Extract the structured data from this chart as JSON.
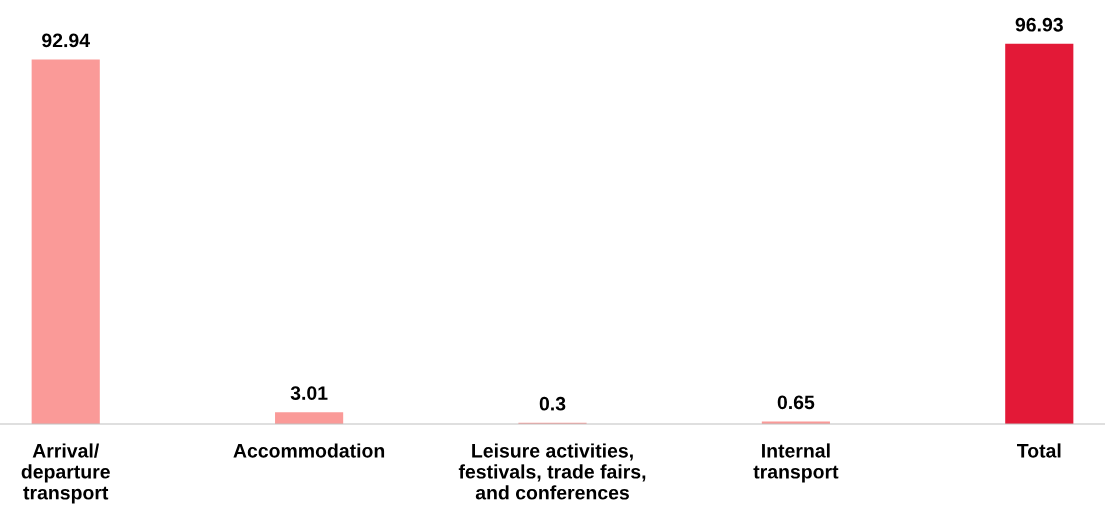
{
  "chart_data": {
    "type": "bar",
    "categories": [
      "Arrival/\ndeparture\ntransport",
      "Accommodation",
      "Leisure activities,\nfestivals, trade fairs,\nand conferences",
      "Internal\ntransport",
      "Total"
    ],
    "values": [
      92.94,
      3.01,
      0.3,
      0.65,
      96.93
    ],
    "colors": [
      "#fa9a98",
      "#fa9a98",
      "#fa9a98",
      "#fa9a98",
      "#e31937"
    ],
    "data_labels": true,
    "grid": false,
    "legend": false
  }
}
